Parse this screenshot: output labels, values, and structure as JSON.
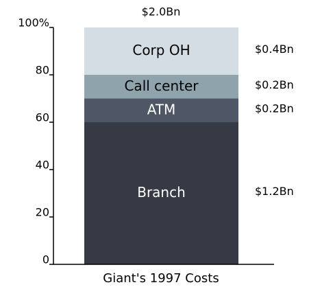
{
  "chart_data": {
    "type": "stacked_bar",
    "categories": [
      "Giant's 1997 Costs"
    ],
    "total_label": "$2.0Bn",
    "series": [
      {
        "name": "Branch",
        "color": "#363a45",
        "text_color": "#ffffff",
        "values": [
          60
        ],
        "value_labels": [
          "$1.2Bn"
        ]
      },
      {
        "name": "ATM",
        "color": "#4f5666",
        "text_color": "#ffffff",
        "values": [
          10
        ],
        "value_labels": [
          "$0.2Bn"
        ]
      },
      {
        "name": "Call center",
        "color": "#8fa3ad",
        "text_color": "#000000",
        "values": [
          10
        ],
        "value_labels": [
          "$0.2Bn"
        ]
      },
      {
        "name": "Corp OH",
        "color": "#d5dde4",
        "text_color": "#000000",
        "values": [
          20
        ],
        "value_labels": [
          "$0.4Bn"
        ]
      }
    ],
    "ylim": [
      0,
      100
    ],
    "yticks": [
      0,
      20,
      40,
      60,
      80,
      {
        "value": 100,
        "label": "100%"
      }
    ]
  }
}
